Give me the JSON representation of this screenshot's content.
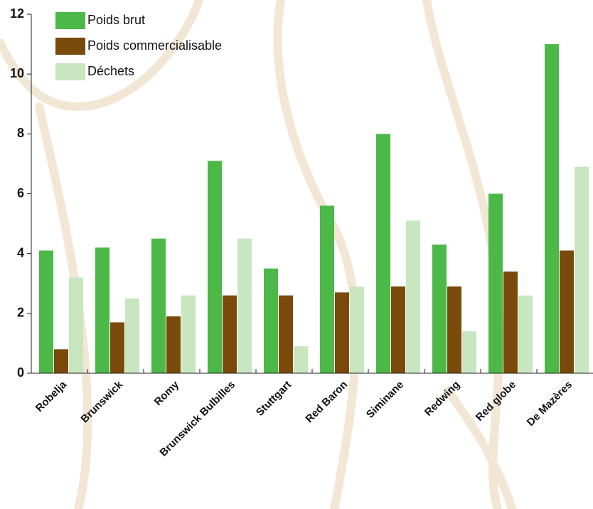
{
  "chart_data": {
    "type": "bar",
    "categories": [
      "Robelja",
      "Brunswick",
      "Romy",
      "Brunswick Bulbilles",
      "Stuttgart",
      "Red Baron",
      "Siminane",
      "Redwing",
      "Red globe",
      "De Mazères"
    ],
    "series": [
      {
        "name": "Poids brut",
        "color": "#4cb848",
        "values": [
          4.1,
          4.2,
          4.5,
          7.1,
          3.5,
          5.6,
          8.0,
          4.3,
          6.0,
          11.0
        ]
      },
      {
        "name": "Poids commercialisable",
        "color": "#7a4a0a",
        "values": [
          0.8,
          1.7,
          1.9,
          2.6,
          2.6,
          2.7,
          2.9,
          2.9,
          3.4,
          4.1
        ]
      },
      {
        "name": "Déchets",
        "color": "#c8e6c0",
        "values": [
          3.2,
          2.5,
          2.6,
          4.5,
          0.9,
          2.9,
          5.1,
          1.4,
          2.6,
          6.9
        ]
      }
    ],
    "ylim": [
      0,
      12
    ],
    "yticks": [
      0,
      2,
      4,
      6,
      8,
      10,
      12
    ],
    "legend": "top-left"
  }
}
